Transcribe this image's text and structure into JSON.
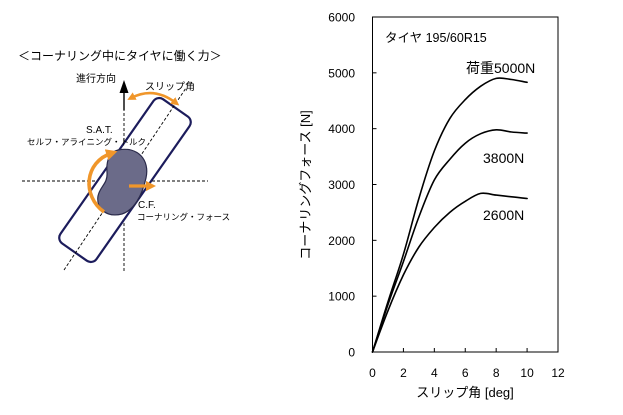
{
  "diagram": {
    "title": "＜コーナリング中にタイヤに働く力＞",
    "direction_label": "進行方向",
    "slip_angle_label": "スリップ角",
    "sat_label": "S.A.T.",
    "sat_desc": "セルフ・アライニング・トルク",
    "cf_label": "C.F.",
    "cf_desc": "コーナリング・フォース",
    "colors": {
      "arrow": "#f0962a",
      "outline": "#1c1c5c",
      "patch": "#6b6b89"
    }
  },
  "chart_data": {
    "type": "line",
    "title": "タイヤ 195/60R15",
    "xlabel": "スリップ角 [deg]",
    "ylabel": "コーナリングフォース [N]",
    "xlim": [
      0,
      12
    ],
    "ylim": [
      0,
      6000
    ],
    "grid": false,
    "x_ticks": [
      "0",
      "2",
      "4",
      "6",
      "8",
      "10",
      "12"
    ],
    "y_ticks": [
      "0",
      "1000",
      "2000",
      "3000",
      "4000",
      "5000",
      "6000"
    ],
    "x": [
      0,
      1,
      2,
      3,
      4,
      5,
      6,
      7,
      8,
      9,
      10
    ],
    "series": [
      {
        "name": "荷重5000N",
        "color": "#000000",
        "values": [
          0,
          900,
          1750,
          2750,
          3600,
          4180,
          4520,
          4760,
          4900,
          4880,
          4830
        ]
      },
      {
        "name": "3800N",
        "color": "#000000",
        "values": [
          0,
          850,
          1620,
          2420,
          3080,
          3450,
          3740,
          3910,
          3980,
          3940,
          3920
        ]
      },
      {
        "name": "2600N",
        "color": "#000000",
        "values": [
          0,
          740,
          1380,
          1880,
          2230,
          2500,
          2700,
          2840,
          2810,
          2780,
          2750
        ]
      }
    ]
  }
}
